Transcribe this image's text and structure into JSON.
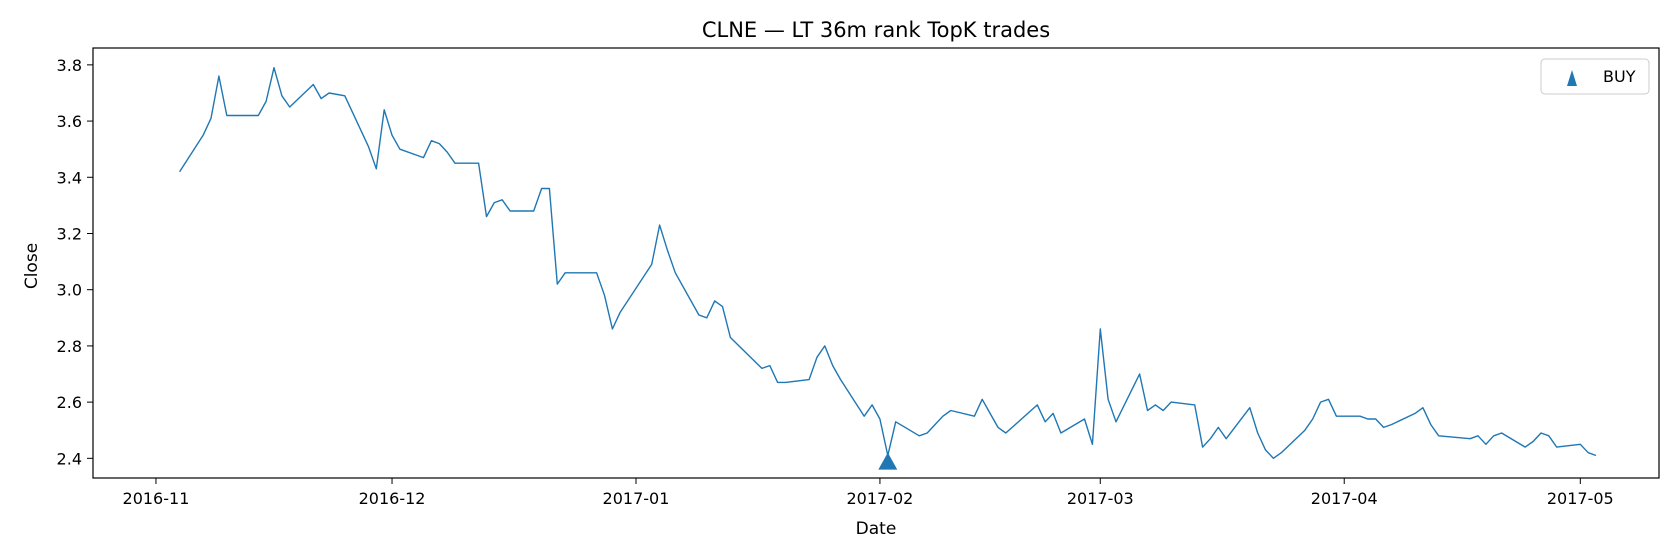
{
  "chart_data": {
    "type": "line",
    "title": "CLNE — LT 36m rank TopK trades",
    "xlabel": "Date",
    "ylabel": "Close",
    "xlim": [
      "2016-10-24",
      "2017-05-11"
    ],
    "ylim": [
      2.33,
      3.86
    ],
    "x_ticks": [
      "2016-11-01",
      "2016-12-01",
      "2017-01-01",
      "2017-02-01",
      "2017-03-01",
      "2017-04-01",
      "2017-05-01"
    ],
    "x_tick_labels": [
      "2016-11",
      "2016-12",
      "2017-01",
      "2017-02",
      "2017-03",
      "2017-04",
      "2017-05"
    ],
    "y_ticks": [
      2.4,
      2.6,
      2.8,
      3.0,
      3.2,
      3.4,
      3.6,
      3.8
    ],
    "y_tick_labels": [
      "2.4",
      "2.6",
      "2.8",
      "3.0",
      "3.2",
      "3.4",
      "3.6",
      "3.8"
    ],
    "grid": false,
    "legend_position": "top-right",
    "colors": {
      "line": "#1f77b4",
      "marker": "#1f77b4"
    },
    "series": [
      {
        "kind": "line",
        "x": [
          "2016-11-04",
          "2016-11-07",
          "2016-11-08",
          "2016-11-09",
          "2016-11-10",
          "2016-11-11",
          "2016-11-14",
          "2016-11-15",
          "2016-11-16",
          "2016-11-17",
          "2016-11-18",
          "2016-11-21",
          "2016-11-22",
          "2016-11-23",
          "2016-11-25",
          "2016-11-28",
          "2016-11-29",
          "2016-11-30",
          "2016-12-01",
          "2016-12-02",
          "2016-12-05",
          "2016-12-06",
          "2016-12-07",
          "2016-12-08",
          "2016-12-09",
          "2016-12-12",
          "2016-12-13",
          "2016-12-14",
          "2016-12-15",
          "2016-12-16",
          "2016-12-19",
          "2016-12-20",
          "2016-12-21",
          "2016-12-22",
          "2016-12-23",
          "2016-12-27",
          "2016-12-28",
          "2016-12-29",
          "2016-12-30",
          "2017-01-03",
          "2017-01-04",
          "2017-01-05",
          "2017-01-06",
          "2017-01-09",
          "2017-01-10",
          "2017-01-11",
          "2017-01-12",
          "2017-01-13",
          "2017-01-17",
          "2017-01-18",
          "2017-01-19",
          "2017-01-20",
          "2017-01-23",
          "2017-01-24",
          "2017-01-25",
          "2017-01-26",
          "2017-01-27",
          "2017-01-30",
          "2017-01-31",
          "2017-02-01",
          "2017-02-02",
          "2017-02-03",
          "2017-02-06",
          "2017-02-07",
          "2017-02-08",
          "2017-02-09",
          "2017-02-10",
          "2017-02-13",
          "2017-02-14",
          "2017-02-15",
          "2017-02-16",
          "2017-02-17",
          "2017-02-21",
          "2017-02-22",
          "2017-02-23",
          "2017-02-24",
          "2017-02-27",
          "2017-02-28",
          "2017-03-01",
          "2017-03-02",
          "2017-03-03",
          "2017-03-06",
          "2017-03-07",
          "2017-03-08",
          "2017-03-09",
          "2017-03-10",
          "2017-03-13",
          "2017-03-14",
          "2017-03-15",
          "2017-03-16",
          "2017-03-17",
          "2017-03-20",
          "2017-03-21",
          "2017-03-22",
          "2017-03-23",
          "2017-03-24",
          "2017-03-27",
          "2017-03-28",
          "2017-03-29",
          "2017-03-30",
          "2017-03-31",
          "2017-04-03",
          "2017-04-04",
          "2017-04-05",
          "2017-04-06",
          "2017-04-07",
          "2017-04-10",
          "2017-04-11",
          "2017-04-12",
          "2017-04-13",
          "2017-04-17",
          "2017-04-18",
          "2017-04-19",
          "2017-04-20",
          "2017-04-21",
          "2017-04-24",
          "2017-04-25",
          "2017-04-26",
          "2017-04-27",
          "2017-04-28",
          "2017-05-01",
          "2017-05-02",
          "2017-05-03"
        ],
        "y": [
          3.42,
          3.55,
          3.61,
          3.76,
          3.62,
          3.62,
          3.62,
          3.67,
          3.79,
          3.69,
          3.65,
          3.73,
          3.68,
          3.7,
          3.69,
          3.51,
          3.43,
          3.64,
          3.55,
          3.5,
          3.47,
          3.53,
          3.52,
          3.49,
          3.45,
          3.45,
          3.26,
          3.31,
          3.32,
          3.28,
          3.28,
          3.36,
          3.36,
          3.02,
          3.06,
          3.06,
          2.98,
          2.86,
          2.92,
          3.09,
          3.23,
          3.14,
          3.06,
          2.91,
          2.9,
          2.96,
          2.94,
          2.83,
          2.72,
          2.73,
          2.67,
          2.67,
          2.68,
          2.76,
          2.8,
          2.73,
          2.68,
          2.55,
          2.59,
          2.54,
          2.41,
          2.53,
          2.48,
          2.49,
          2.52,
          2.55,
          2.57,
          2.55,
          2.61,
          2.56,
          2.51,
          2.49,
          2.59,
          2.53,
          2.56,
          2.49,
          2.54,
          2.45,
          2.86,
          2.61,
          2.53,
          2.7,
          2.57,
          2.59,
          2.57,
          2.6,
          2.59,
          2.44,
          2.47,
          2.51,
          2.47,
          2.58,
          2.49,
          2.43,
          2.4,
          2.42,
          2.5,
          2.54,
          2.6,
          2.61,
          2.55,
          2.55,
          2.54,
          2.54,
          2.51,
          2.52,
          2.56,
          2.58,
          2.52,
          2.48,
          2.47,
          2.48,
          2.45,
          2.48,
          2.49,
          2.44,
          2.46,
          2.49,
          2.48,
          2.44,
          2.45,
          2.42,
          2.41
        ]
      },
      {
        "name": "BUY",
        "kind": "scatter",
        "marker": "triangle-up",
        "x": [
          "2017-02-02"
        ],
        "y": [
          2.39
        ]
      }
    ]
  }
}
